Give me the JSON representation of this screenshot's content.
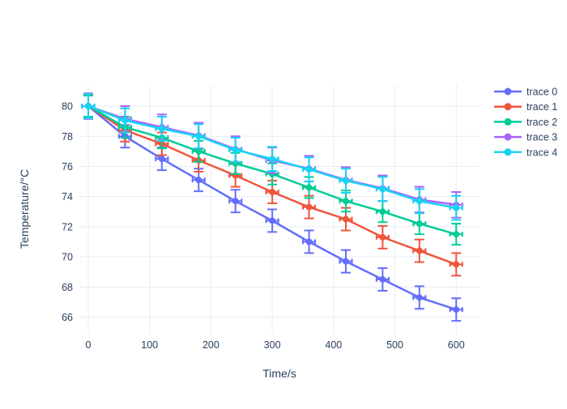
{
  "chart_data": {
    "type": "line",
    "title": "",
    "xlabel": "Time/s",
    "ylabel": "Temperature/°C",
    "x": [
      0,
      60,
      120,
      180,
      240,
      300,
      360,
      420,
      480,
      540,
      600
    ],
    "series": [
      {
        "name": "trace 0",
        "color": "#636EFA",
        "values": [
          80.0,
          78.0,
          76.5,
          75.1,
          73.7,
          72.4,
          71.0,
          69.7,
          68.5,
          67.3,
          66.5
        ],
        "error_y": 0.75,
        "error_x": 10
      },
      {
        "name": "trace 1",
        "color": "#EF553B",
        "values": [
          80.0,
          78.4,
          77.5,
          76.4,
          75.4,
          74.3,
          73.3,
          72.5,
          71.3,
          70.4,
          69.5
        ],
        "error_y": 0.75,
        "error_x": 10
      },
      {
        "name": "trace 2",
        "color": "#00CC96",
        "values": [
          80.0,
          78.6,
          77.9,
          77.0,
          76.2,
          75.5,
          74.6,
          73.7,
          73.0,
          72.2,
          71.5
        ],
        "error_y": 0.7,
        "error_x": 10
      },
      {
        "name": "trace 3",
        "color": "#AB63FA",
        "values": [
          80.0,
          79.15,
          78.6,
          78.05,
          77.15,
          76.4,
          75.85,
          75.1,
          74.55,
          73.8,
          73.45
        ],
        "error_y": 0.85,
        "error_x": 10
      },
      {
        "name": "trace 4",
        "color": "#19D3F3",
        "values": [
          80.0,
          79.05,
          78.5,
          78.0,
          77.1,
          76.5,
          75.8,
          75.05,
          74.5,
          73.7,
          73.25
        ],
        "error_y": 0.8,
        "error_x": 10
      }
    ],
    "xticks": [
      0,
      100,
      200,
      300,
      400,
      500,
      600
    ],
    "yticks": [
      66,
      68,
      70,
      72,
      74,
      76,
      78,
      80
    ],
    "xlim": [
      -14.5,
      638
    ],
    "ylim": [
      64.9,
      81.4
    ],
    "grid": true,
    "legend_position": "right",
    "marker": "circle"
  },
  "style": {
    "text_color": "#2a3f5f",
    "grid_color": "#E5ECF6",
    "background": "#ffffff"
  }
}
